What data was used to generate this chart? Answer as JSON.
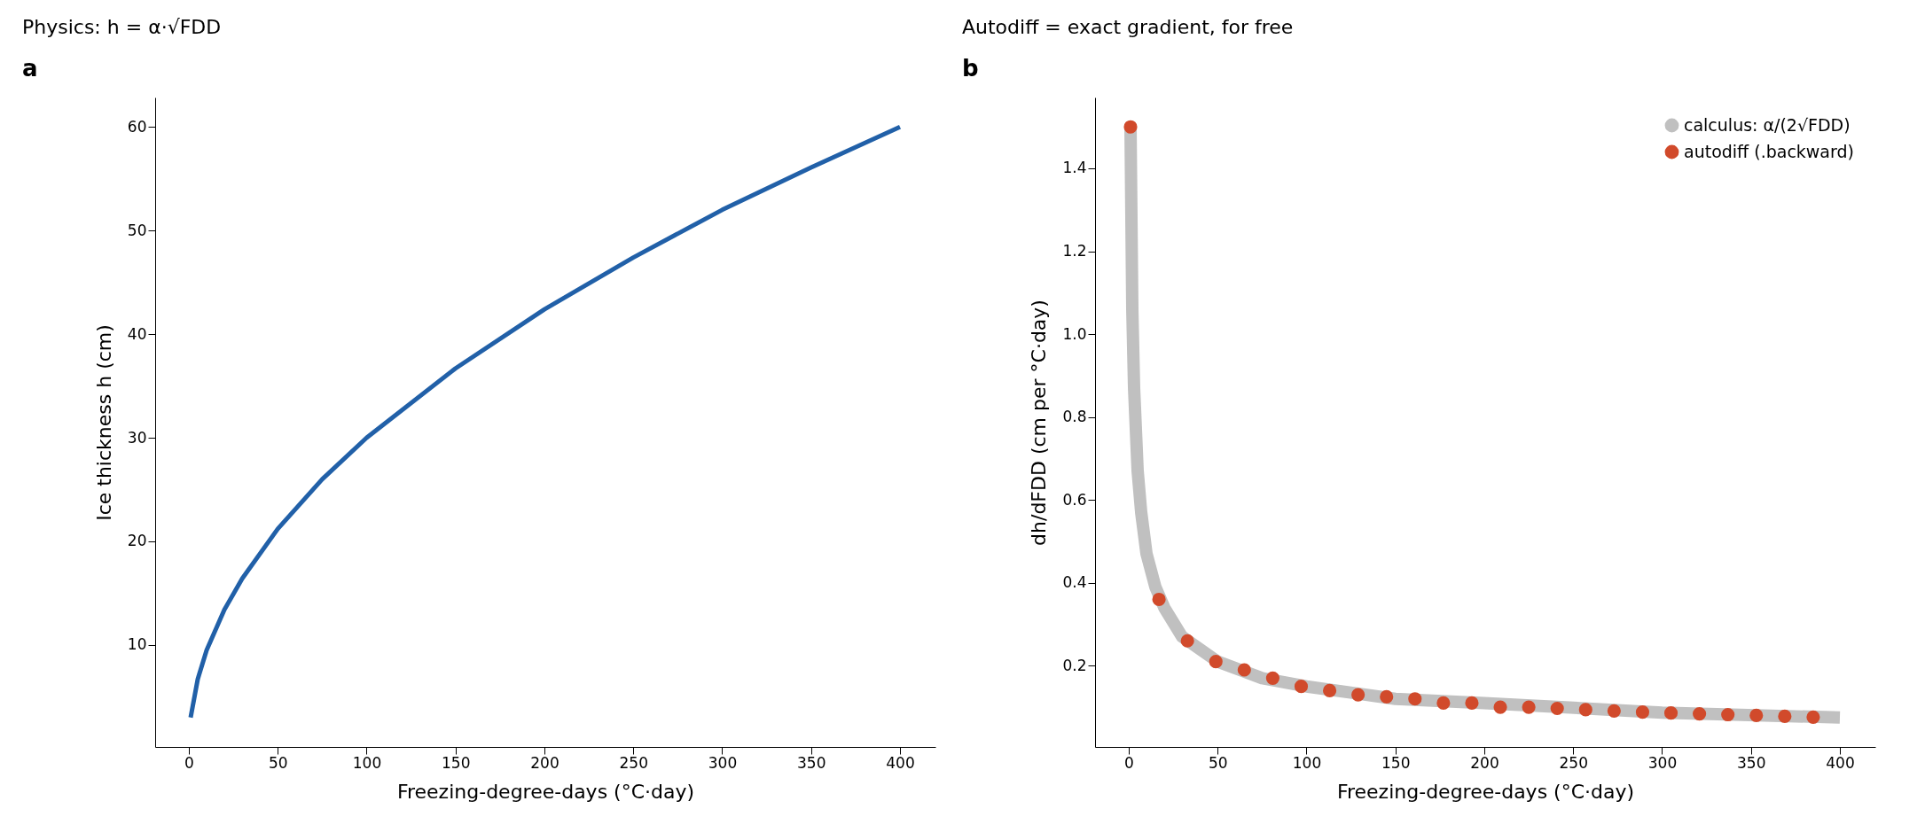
{
  "chart_data": [
    {
      "type": "line",
      "title": "Physics: h = α·√FDD",
      "xlabel": "Freezing-degree-days  (°C·day)",
      "ylabel": "Ice thickness  h  (cm)",
      "annotations": [
        "a"
      ],
      "series": [
        {
          "color": "#2160a8",
          "x": [
            1,
            5,
            10,
            20,
            30,
            50,
            75,
            100,
            150,
            200,
            250,
            300,
            350,
            400
          ],
          "values": [
            3,
            6.7,
            9.5,
            13.4,
            16.4,
            21.2,
            26,
            30,
            36.7,
            42.4,
            47.4,
            52,
            56.1,
            60
          ]
        }
      ],
      "xlim": [
        -18.95,
        419.95
      ],
      "xticks": [
        0,
        50,
        100,
        150,
        200,
        250,
        300,
        350,
        400
      ],
      "ylim": [
        0.15,
        62.85
      ],
      "yticks": [
        10,
        20,
        30,
        40,
        50,
        60
      ],
      "grid": false,
      "legend": false
    },
    {
      "type": "line",
      "title": "Autodiff = exact gradient, for free",
      "xlabel": "Freezing-degree-days  (°C·day)",
      "ylabel": "dh/dFDD  (cm per °C·day)",
      "annotations": [
        "b"
      ],
      "series": [
        {
          "name": "calculus:  α/(2√FDD)",
          "color": "#c0c0c0",
          "x": [
            1,
            2,
            3,
            5,
            7,
            10,
            15,
            20,
            30,
            50,
            75,
            100,
            150,
            200,
            300,
            400
          ],
          "values": [
            1.5,
            1.06,
            0.87,
            0.67,
            0.57,
            0.47,
            0.39,
            0.34,
            0.27,
            0.21,
            0.17,
            0.15,
            0.12,
            0.11,
            0.087,
            0.075
          ]
        },
        {
          "name": "autodiff (.backward)",
          "type": "scatter",
          "marker": "circle",
          "color": "#d14a2b",
          "x": [
            1,
            17,
            33,
            49,
            65,
            81,
            97,
            113,
            129,
            145,
            161,
            177,
            193,
            209,
            225,
            241,
            257,
            273,
            289,
            305,
            321,
            337,
            353,
            369,
            385
          ],
          "values": [
            1.5,
            0.36,
            0.26,
            0.21,
            0.19,
            0.17,
            0.15,
            0.14,
            0.13,
            0.125,
            0.12,
            0.11,
            0.11,
            0.1,
            0.1,
            0.097,
            0.094,
            0.091,
            0.088,
            0.086,
            0.084,
            0.082,
            0.08,
            0.078,
            0.076
          ]
        }
      ],
      "xlim": [
        -18.95,
        419.95
      ],
      "xticks": [
        0,
        50,
        100,
        150,
        200,
        250,
        300,
        350,
        400
      ],
      "ylim": [
        0.004,
        1.571
      ],
      "yticks": [
        0.2,
        0.4,
        0.6,
        0.8,
        {
          "value": 1,
          "label": "1.0"
        },
        1.2,
        1.4
      ],
      "grid": false,
      "legend": "top right"
    }
  ]
}
